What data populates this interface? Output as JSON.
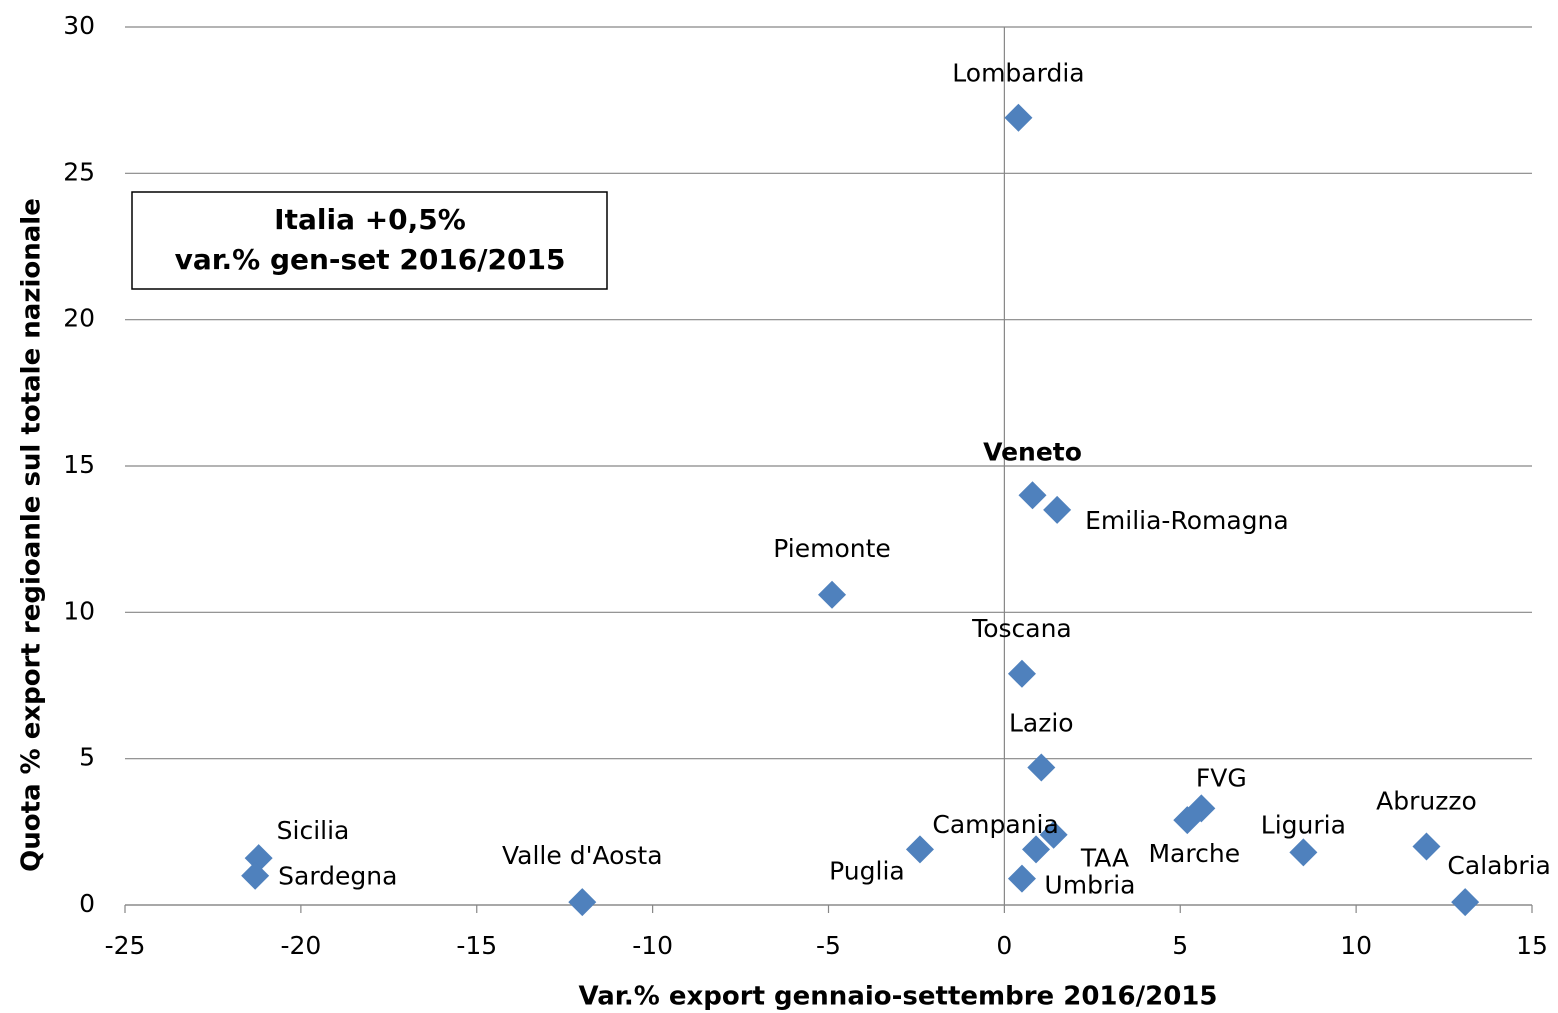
{
  "chart_data": {
    "type": "scatter",
    "x_label": "Var.% export gennaio-settembre 2016/2015",
    "y_label": "Quota % export regioanle sul totale nazionale",
    "annotation": [
      "Italia +0,5%",
      "var.% gen-set 2016/2015"
    ],
    "labels": [
      "Lombardia",
      "Veneto",
      "Emilia-Romagna",
      "Piemonte",
      "Toscana",
      "Lazio",
      "FVG",
      "Marche",
      "Campania",
      "TAA",
      "Umbria",
      "Puglia",
      "Liguria",
      "Abruzzo",
      "Calabria",
      "Sicilia",
      "Sardegna",
      "Valle d'Aosta"
    ],
    "x": [
      0.4,
      0.8,
      1.5,
      -4.9,
      0.5,
      1.05,
      5.6,
      5.2,
      1.4,
      0.9,
      0.5,
      -2.4,
      8.5,
      12.0,
      13.1,
      -21.2,
      -21.3,
      -12.0
    ],
    "values": [
      26.9,
      14.0,
      13.5,
      10.6,
      7.9,
      4.7,
      3.3,
      2.9,
      2.4,
      1.9,
      0.9,
      1.9,
      1.8,
      2.0,
      0.1,
      1.6,
      1.0,
      0.1
    ],
    "color": "#4f81bd",
    "xlim": [
      -25,
      15
    ],
    "xticks": [
      -25,
      -20,
      -15,
      -10,
      -5,
      0,
      5,
      10,
      15
    ],
    "ylim": [
      0,
      30
    ],
    "yticks": [
      0,
      5,
      10,
      15,
      20,
      25,
      30
    ],
    "grid": true
  }
}
